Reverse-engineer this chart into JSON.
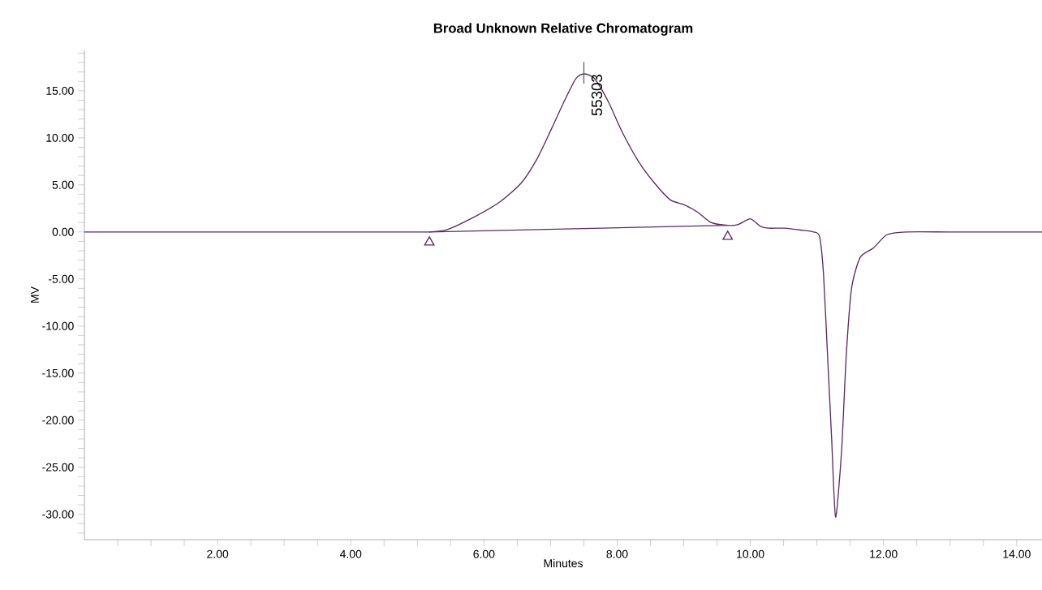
{
  "chart_data": {
    "type": "line",
    "title": "Broad Unknown Relative Chromatogram",
    "xlabel": "Minutes",
    "ylabel": "MV",
    "xlim": [
      0,
      14.38
    ],
    "ylim": [
      -32.7,
      19.3
    ],
    "xticks": [
      {
        "value": 0.5,
        "label": null
      },
      {
        "value": 1,
        "label": null
      },
      {
        "value": 1.5,
        "label": null
      },
      {
        "value": 2,
        "label": "2.00"
      },
      {
        "value": 2.5,
        "label": null
      },
      {
        "value": 3,
        "label": null
      },
      {
        "value": 3.5,
        "label": null
      },
      {
        "value": 4,
        "label": "4.00"
      },
      {
        "value": 4.5,
        "label": null
      },
      {
        "value": 5,
        "label": null
      },
      {
        "value": 5.5,
        "label": null
      },
      {
        "value": 6,
        "label": "6.00"
      },
      {
        "value": 6.5,
        "label": null
      },
      {
        "value": 7,
        "label": null
      },
      {
        "value": 7.5,
        "label": null
      },
      {
        "value": 8,
        "label": "8.00"
      },
      {
        "value": 8.5,
        "label": null
      },
      {
        "value": 9,
        "label": null
      },
      {
        "value": 9.5,
        "label": null
      },
      {
        "value": 10,
        "label": "10.00"
      },
      {
        "value": 10.5,
        "label": null
      },
      {
        "value": 11,
        "label": null
      },
      {
        "value": 11.5,
        "label": null
      },
      {
        "value": 12,
        "label": "12.00"
      },
      {
        "value": 12.5,
        "label": null
      },
      {
        "value": 13,
        "label": null
      },
      {
        "value": 13.5,
        "label": null
      },
      {
        "value": 14,
        "label": "14.00"
      }
    ],
    "yticks": [
      {
        "value": -32,
        "label": null
      },
      {
        "value": -31,
        "label": null
      },
      {
        "value": -30,
        "label": "-30.00"
      },
      {
        "value": -29,
        "label": null
      },
      {
        "value": -28,
        "label": null
      },
      {
        "value": -27,
        "label": null
      },
      {
        "value": -26,
        "label": null
      },
      {
        "value": -25,
        "label": "-25.00"
      },
      {
        "value": -24,
        "label": null
      },
      {
        "value": -23,
        "label": null
      },
      {
        "value": -22,
        "label": null
      },
      {
        "value": -21,
        "label": null
      },
      {
        "value": -20,
        "label": "-20.00"
      },
      {
        "value": -19,
        "label": null
      },
      {
        "value": -18,
        "label": null
      },
      {
        "value": -17,
        "label": null
      },
      {
        "value": -16,
        "label": null
      },
      {
        "value": -15,
        "label": "-15.00"
      },
      {
        "value": -14,
        "label": null
      },
      {
        "value": -13,
        "label": null
      },
      {
        "value": -12,
        "label": null
      },
      {
        "value": -11,
        "label": null
      },
      {
        "value": -10,
        "label": "-10.00"
      },
      {
        "value": -9,
        "label": null
      },
      {
        "value": -8,
        "label": null
      },
      {
        "value": -7,
        "label": null
      },
      {
        "value": -6,
        "label": null
      },
      {
        "value": -5,
        "label": "-5.00"
      },
      {
        "value": -4,
        "label": null
      },
      {
        "value": -3,
        "label": null
      },
      {
        "value": -2,
        "label": null
      },
      {
        "value": -1,
        "label": null
      },
      {
        "value": 0,
        "label": "0.00"
      },
      {
        "value": 1,
        "label": null
      },
      {
        "value": 2,
        "label": null
      },
      {
        "value": 3,
        "label": null
      },
      {
        "value": 4,
        "label": null
      },
      {
        "value": 5,
        "label": "5.00"
      },
      {
        "value": 6,
        "label": null
      },
      {
        "value": 7,
        "label": null
      },
      {
        "value": 8,
        "label": null
      },
      {
        "value": 9,
        "label": null
      },
      {
        "value": 10,
        "label": "10.00"
      },
      {
        "value": 11,
        "label": null
      },
      {
        "value": 12,
        "label": null
      },
      {
        "value": 13,
        "label": null
      },
      {
        "value": 14,
        "label": null
      },
      {
        "value": 15,
        "label": "15.00"
      },
      {
        "value": 16,
        "label": null
      },
      {
        "value": 17,
        "label": null
      },
      {
        "value": 18,
        "label": null
      },
      {
        "value": 19,
        "label": null
      }
    ],
    "annotations": [
      {
        "text": "55303",
        "x": 7.5,
        "y": 16.8
      }
    ],
    "series": [
      {
        "type": "line",
        "color": "#5c2a5e",
        "x": [
          0,
          1,
          2,
          3,
          4,
          5,
          5.18,
          5.43,
          5.83,
          6.24,
          6.56,
          6.8,
          7.01,
          7.22,
          7.38,
          7.5,
          7.66,
          7.87,
          8.07,
          8.32,
          8.56,
          8.8,
          9.0,
          9.21,
          9.41,
          9.66,
          9.82,
          10.0,
          10.15,
          10.27,
          10.51,
          10.76,
          10.95,
          11.04,
          11.1,
          11.16,
          11.22,
          11.28,
          11.37,
          11.44,
          11.52,
          11.65,
          11.85,
          12.05,
          12.34,
          13,
          14,
          14.38
        ],
        "values": [
          0,
          0,
          0,
          0,
          0,
          0,
          0,
          0.2,
          1.5,
          3.2,
          5.2,
          7.8,
          10.9,
          14.1,
          16.3,
          16.8,
          16.3,
          13.8,
          10.7,
          7.5,
          5.2,
          3.4,
          2.9,
          2.1,
          1.0,
          0.7,
          0.8,
          1.4,
          0.6,
          0.4,
          0.4,
          0.2,
          0,
          -0.5,
          -4.6,
          -13.2,
          -21.8,
          -30.3,
          -23.3,
          -13.2,
          -6.0,
          -2.7,
          -1.7,
          -0.3,
          0,
          0,
          0,
          0
        ]
      },
      {
        "type": "line",
        "color": "#5c2a5e",
        "x": [
          5.18,
          9.66
        ],
        "values": [
          0,
          0.7
        ]
      },
      {
        "type": "scatter",
        "marker": "triangle",
        "color": "#5c2a5e",
        "x": [
          5.18,
          9.66
        ],
        "values": [
          -1.1,
          -0.5
        ]
      }
    ]
  }
}
